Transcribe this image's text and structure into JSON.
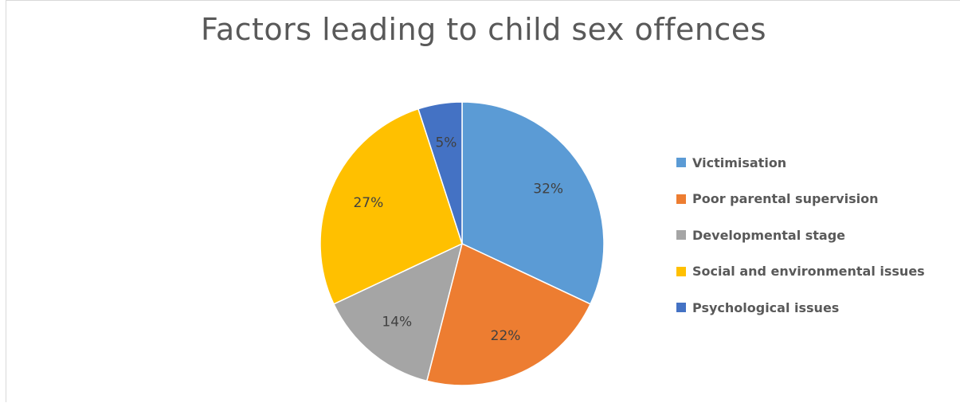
{
  "chart_data": {
    "type": "pie",
    "title": "Factors leading to child sex offences",
    "categories": [
      "Victimisation",
      "Poor parental supervision",
      "Developmental stage",
      "Social and environmental issues",
      "Psychological issues"
    ],
    "values": [
      32,
      22,
      14,
      27,
      5
    ],
    "data_labels": [
      "32%",
      "22%",
      "14%",
      "27%",
      "5%"
    ],
    "colors": [
      "#5b9bd5",
      "#ed7d31",
      "#a5a5a5",
      "#ffc000",
      "#4472c4"
    ],
    "legend_position": "right",
    "start_angle": "12 o'clock, clockwise"
  }
}
